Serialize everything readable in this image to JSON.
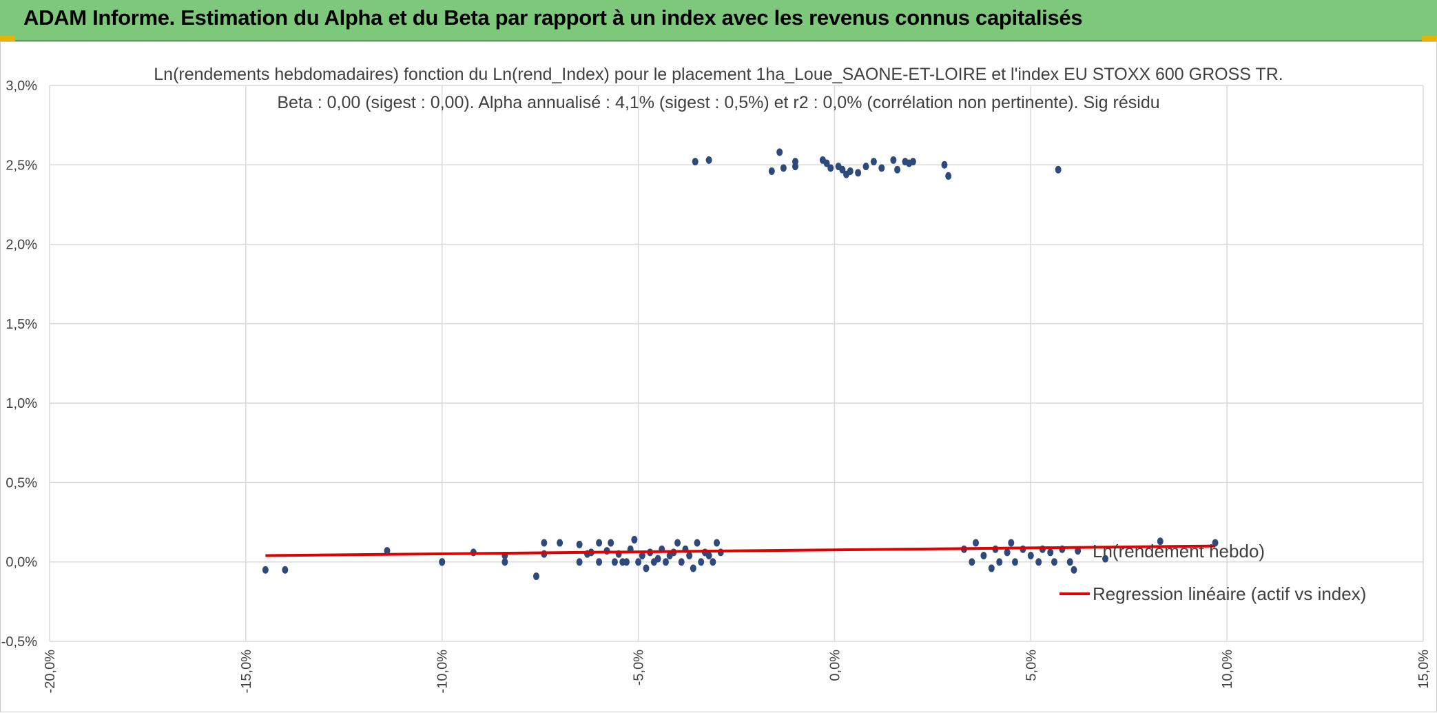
{
  "header": {
    "title": "ADAM Informe. Estimation du Alpha et du Beta par rapport à un index avec les revenus connus capitalisés"
  },
  "colors": {
    "banner": "#7dc87b",
    "accent": "#e8b200",
    "points": "#2e4a7a",
    "regression": "#e00000",
    "grid": "#d9d9d9",
    "text": "#404040"
  },
  "chart_data": {
    "type": "scatter",
    "title": "Ln(rendements hebdomadaires) fonction du Ln(rend_Index) pour le placement 1ha_Loue_SAONE-ET-LOIRE et l'index EU STOXX 600 GROSS TR.",
    "subtitle": "Beta : 0,00 (sigest : 0,00). Alpha annualisé : 4,1% (sigest : 0,5%) et r2 : 0,0% (corrélation non pertinente). Sig résidu",
    "xlabel": "",
    "ylabel": "",
    "xlim": [
      -0.2,
      0.15
    ],
    "ylim": [
      -0.005,
      0.03
    ],
    "x_ticks": [
      "-20,0%",
      "-15,0%",
      "-10,0%",
      "-5,0%",
      "0,0%",
      "5,0%",
      "10,0%",
      "15,0%"
    ],
    "y_ticks": [
      "3,0%",
      "2,5%",
      "2,0%",
      "1,5%",
      "1,0%",
      "0,5%",
      "0,0%",
      "-0,5%"
    ],
    "grid": true,
    "legend_position": "right",
    "series": [
      {
        "name": "Ln(rendement hebdo)",
        "kind": "scatter",
        "color": "#2e4a7a",
        "points": [
          [
            -0.145,
            -0.0005
          ],
          [
            -0.14,
            -0.0005
          ],
          [
            -0.114,
            0.0007
          ],
          [
            -0.1,
            0.0
          ],
          [
            -0.1,
            0.0
          ],
          [
            -0.092,
            0.0006
          ],
          [
            -0.084,
            0.0004
          ],
          [
            -0.084,
            0.0
          ],
          [
            -0.076,
            -0.0009
          ],
          [
            -0.074,
            0.0012
          ],
          [
            -0.074,
            0.0005
          ],
          [
            -0.07,
            0.0012
          ],
          [
            -0.065,
            0.0011
          ],
          [
            -0.065,
            0.0
          ],
          [
            -0.063,
            0.0005
          ],
          [
            -0.062,
            0.0006
          ],
          [
            -0.06,
            0.0012
          ],
          [
            -0.06,
            0.0
          ],
          [
            -0.058,
            0.0007
          ],
          [
            -0.057,
            0.0012
          ],
          [
            -0.056,
            0.0
          ],
          [
            -0.055,
            0.0005
          ],
          [
            -0.054,
            0.0
          ],
          [
            -0.053,
            0.0
          ],
          [
            -0.052,
            0.0008
          ],
          [
            -0.051,
            0.0014
          ],
          [
            -0.05,
            0.0
          ],
          [
            -0.049,
            0.0004
          ],
          [
            -0.048,
            -0.0004
          ],
          [
            -0.047,
            0.0006
          ],
          [
            -0.046,
            0.0
          ],
          [
            -0.045,
            0.0002
          ],
          [
            -0.044,
            0.0008
          ],
          [
            -0.043,
            0.0
          ],
          [
            -0.042,
            0.0004
          ],
          [
            -0.041,
            0.0006
          ],
          [
            -0.04,
            0.0012
          ],
          [
            -0.039,
            0.0
          ],
          [
            -0.038,
            0.0008
          ],
          [
            -0.037,
            0.0004
          ],
          [
            -0.036,
            -0.0004
          ],
          [
            -0.035,
            0.0012
          ],
          [
            -0.034,
            0.0
          ],
          [
            -0.033,
            0.0006
          ],
          [
            -0.032,
            0.0004
          ],
          [
            -0.031,
            0.0
          ],
          [
            -0.03,
            0.0012
          ],
          [
            -0.029,
            0.0006
          ],
          [
            -0.0355,
            0.0252
          ],
          [
            -0.032,
            0.0253
          ],
          [
            -0.016,
            0.0246
          ],
          [
            -0.014,
            0.0258
          ],
          [
            -0.013,
            0.0248
          ],
          [
            -0.01,
            0.0252
          ],
          [
            -0.01,
            0.0249
          ],
          [
            -0.003,
            0.0253
          ],
          [
            -0.002,
            0.0251
          ],
          [
            -0.001,
            0.0248
          ],
          [
            0.001,
            0.0249
          ],
          [
            0.002,
            0.0247
          ],
          [
            0.003,
            0.0244
          ],
          [
            0.004,
            0.0246
          ],
          [
            0.006,
            0.0245
          ],
          [
            0.008,
            0.0249
          ],
          [
            0.01,
            0.0252
          ],
          [
            0.012,
            0.0248
          ],
          [
            0.015,
            0.0253
          ],
          [
            0.016,
            0.0247
          ],
          [
            0.018,
            0.0252
          ],
          [
            0.019,
            0.0251
          ],
          [
            0.02,
            0.0252
          ],
          [
            0.028,
            0.025
          ],
          [
            0.029,
            0.0243
          ],
          [
            0.057,
            0.0247
          ],
          [
            0.033,
            0.0008
          ],
          [
            0.035,
            0.0
          ],
          [
            0.036,
            0.0012
          ],
          [
            0.038,
            0.0004
          ],
          [
            0.04,
            -0.0004
          ],
          [
            0.041,
            0.0008
          ],
          [
            0.042,
            0.0
          ],
          [
            0.044,
            0.0006
          ],
          [
            0.045,
            0.0012
          ],
          [
            0.046,
            0.0
          ],
          [
            0.048,
            0.0008
          ],
          [
            0.05,
            0.0004
          ],
          [
            0.052,
            0.0
          ],
          [
            0.053,
            0.0008
          ],
          [
            0.055,
            0.0006
          ],
          [
            0.056,
            0.0
          ],
          [
            0.058,
            0.0008
          ],
          [
            0.06,
            0.0
          ],
          [
            0.061,
            -0.0005
          ],
          [
            0.062,
            0.0007
          ],
          [
            0.069,
            0.0002
          ],
          [
            0.083,
            0.0013
          ],
          [
            0.097,
            0.0012
          ]
        ]
      },
      {
        "name": "Regression linéaire (actif vs index)",
        "kind": "line",
        "color": "#e00000",
        "points": [
          [
            -0.145,
            0.0004
          ],
          [
            0.097,
            0.001
          ]
        ]
      }
    ]
  }
}
